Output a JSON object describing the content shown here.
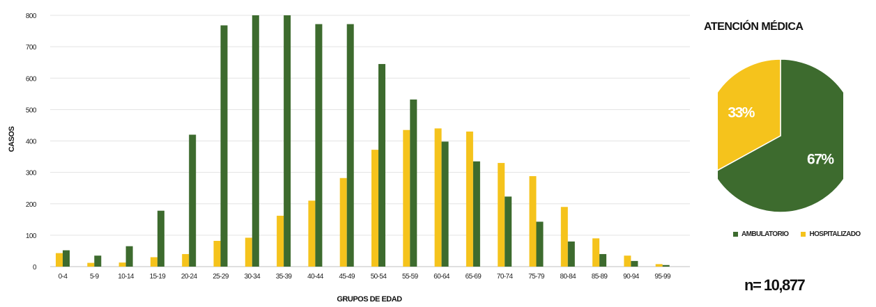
{
  "chart_data": [
    {
      "type": "bar",
      "xlabel": "GRUPOS DE EDAD",
      "ylabel": "CASOS",
      "ylim": [
        0,
        800
      ],
      "yticks": [
        0,
        100,
        200,
        300,
        400,
        500,
        600,
        700,
        800
      ],
      "grid": true,
      "categories": [
        "0-4",
        "5-9",
        "10-14",
        "15-19",
        "20-24",
        "25-29",
        "30-34",
        "35-39",
        "40-44",
        "45-49",
        "50-54",
        "55-59",
        "60-64",
        "65-69",
        "70-74",
        "75-79",
        "80-84",
        "85-89",
        "90-94",
        "95-99"
      ],
      "series": [
        {
          "name": "HOSPITALIZADO",
          "color": "#F5C31C",
          "values": [
            43,
            12,
            13,
            30,
            40,
            82,
            92,
            162,
            210,
            282,
            372,
            435,
            440,
            430,
            330,
            288,
            190,
            90,
            35,
            8
          ]
        },
        {
          "name": "AMBULATORIO",
          "color": "#3D6B2E",
          "values": [
            52,
            35,
            65,
            178,
            420,
            768,
            800,
            800,
            772,
            772,
            645,
            532,
            398,
            335,
            223,
            143,
            80,
            40,
            18,
            5
          ]
        }
      ]
    },
    {
      "type": "pie",
      "title": "ATENCIÓN MÉDICA",
      "labels": [
        "AMBULATORIO",
        "HOSPITALIZADO"
      ],
      "values": [
        67,
        33
      ],
      "value_labels": [
        "67%",
        "33%"
      ],
      "colors": [
        "#3D6B2E",
        "#F5C31C"
      ],
      "legend_position": "bottom"
    }
  ],
  "n_label": "n= 10,877"
}
